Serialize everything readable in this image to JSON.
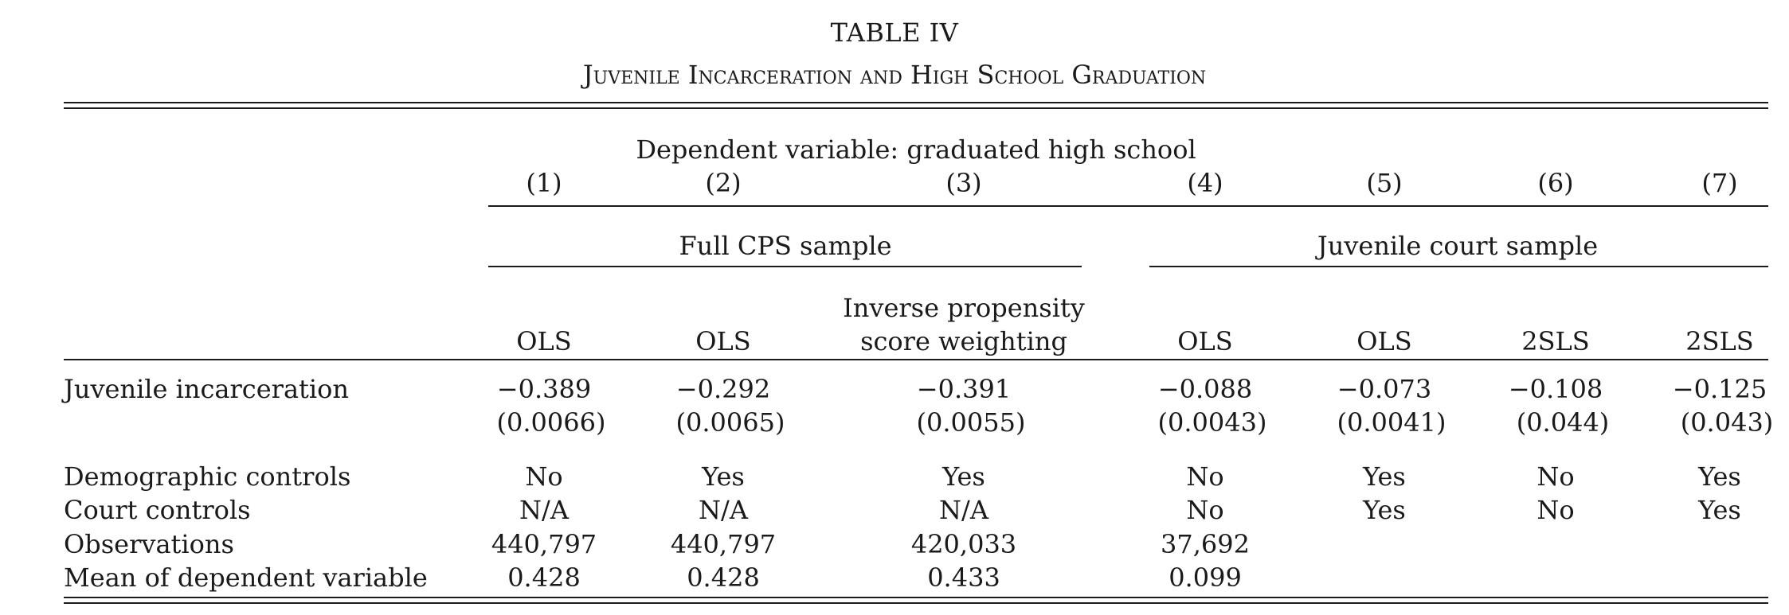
{
  "table": {
    "title": "TABLE IV",
    "subtitle": "Juvenile Incarceration and High School Graduation",
    "dependent_variable_label": "Dependent variable: graduated high school",
    "column_numbers": [
      "(1)",
      "(2)",
      "(3)",
      "(4)",
      "(5)",
      "(6)",
      "(7)"
    ],
    "groups": {
      "full_cps": "Full CPS sample",
      "juvenile_court": "Juvenile court sample"
    },
    "methods": {
      "c1": "OLS",
      "c2": "OLS",
      "c3_line1": "Inverse propensity",
      "c3_line2": "score weighting",
      "c4": "OLS",
      "c5": "OLS",
      "c6": "2SLS",
      "c7": "2SLS"
    },
    "rows": {
      "juvenile_incarceration": {
        "label": "Juvenile incarceration",
        "coefficients": [
          "−0.389",
          "−0.292",
          "−0.391",
          "−0.088",
          "−0.073",
          "−0.108",
          "−0.125"
        ],
        "std_errors": [
          "(0.0066)",
          "(0.0065)",
          "(0.0055)",
          "(0.0043)",
          "(0.0041)",
          "(0.044)",
          "(0.043)"
        ]
      },
      "demographic_controls": {
        "label": "Demographic controls",
        "values": [
          "No",
          "Yes",
          "Yes",
          "No",
          "Yes",
          "No",
          "Yes"
        ]
      },
      "court_controls": {
        "label": "Court controls",
        "values": [
          "N/A",
          "N/A",
          "N/A",
          "No",
          "Yes",
          "No",
          "Yes"
        ]
      },
      "observations": {
        "label": "Observations",
        "values": [
          "440,797",
          "440,797",
          "420,033",
          "37,692"
        ]
      },
      "mean_dependent": {
        "label": "Mean of dependent variable",
        "values": [
          "0.428",
          "0.428",
          "0.433",
          "0.099"
        ]
      }
    }
  }
}
